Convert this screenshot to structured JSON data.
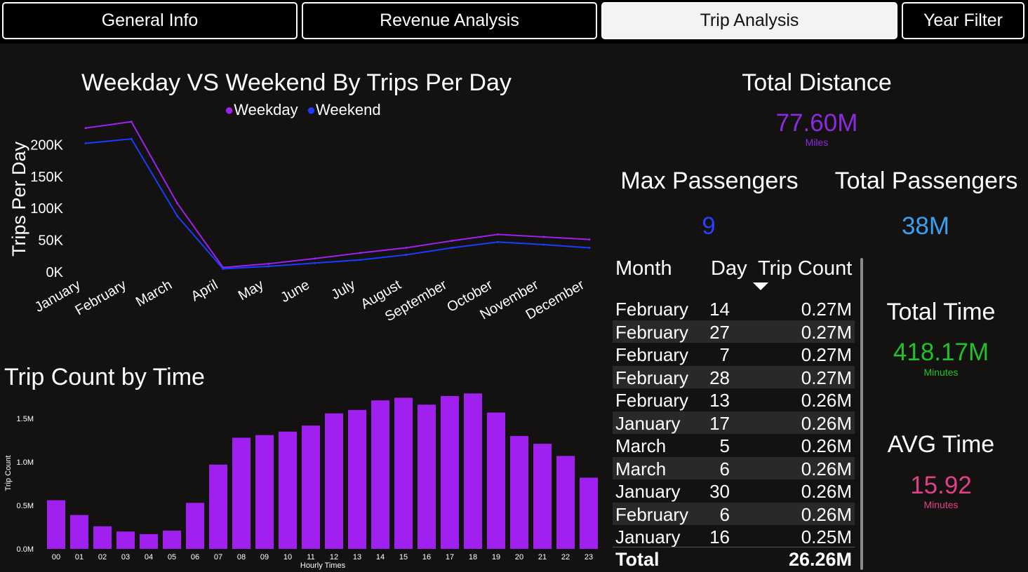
{
  "tabs": [
    {
      "label": "General Info"
    },
    {
      "label": "Revenue Analysis"
    },
    {
      "label": "Trip Analysis",
      "active": true
    },
    {
      "label": "Year Filter"
    }
  ],
  "colors": {
    "weekday": "#a020f0",
    "weekend": "#1a3cff",
    "bar": "#a020f0",
    "distance": "#8a2be2",
    "max_passengers": "#2540ff",
    "total_passengers": "#3aa0f0",
    "total_time": "#22c02a",
    "avg_time": "#e0408a"
  },
  "line_chart": {
    "title": "Weekday VS Weekend By Trips Per Day",
    "ylabel": "Trips Per Day",
    "legend": [
      {
        "name": "Weekday",
        "icon": "dot"
      },
      {
        "name": "Weekend",
        "icon": "dot"
      }
    ]
  },
  "bar_chart": {
    "title": "Trip Count by Time",
    "ylabel": "Trip Count",
    "xlabel": "Hourly Times"
  },
  "chart_data": [
    {
      "type": "line",
      "title": "Weekday VS Weekend By Trips Per Day",
      "ylabel": "Trips Per Day",
      "categories": [
        "January",
        "February",
        "March",
        "April",
        "May",
        "June",
        "July",
        "August",
        "September",
        "October",
        "November",
        "December"
      ],
      "y_ticks": [
        "0K",
        "50K",
        "100K",
        "150K",
        "200K"
      ],
      "ylim": [
        0,
        240000
      ],
      "legend_position": "top-center",
      "series": [
        {
          "name": "Weekday",
          "values": [
            226000,
            236000,
            108000,
            7000,
            13000,
            21000,
            30000,
            38000,
            49000,
            59000,
            55000,
            51000
          ]
        },
        {
          "name": "Weekend",
          "values": [
            202000,
            209000,
            88000,
            5000,
            9000,
            14000,
            19000,
            27000,
            38000,
            47000,
            43000,
            38000
          ]
        }
      ]
    },
    {
      "type": "bar",
      "title": "Trip Count by Time",
      "xlabel": "Hourly Times",
      "ylabel": "Trip Count",
      "categories": [
        "00",
        "01",
        "02",
        "03",
        "04",
        "05",
        "06",
        "07",
        "08",
        "09",
        "10",
        "11",
        "12",
        "13",
        "14",
        "15",
        "16",
        "17",
        "18",
        "19",
        "20",
        "21",
        "22",
        "23"
      ],
      "y_ticks": [
        "0.0M",
        "0.5M",
        "1.0M",
        "1.5M"
      ],
      "ylim": [
        0,
        1.8
      ],
      "values": [
        0.56,
        0.39,
        0.26,
        0.2,
        0.17,
        0.21,
        0.53,
        0.97,
        1.28,
        1.31,
        1.35,
        1.42,
        1.56,
        1.6,
        1.71,
        1.74,
        1.66,
        1.76,
        1.79,
        1.57,
        1.3,
        1.21,
        1.07,
        0.82
      ]
    }
  ],
  "kpis": {
    "total_distance": {
      "title": "Total Distance",
      "value": "77.60M",
      "unit": "Miles"
    },
    "max_passengers": {
      "title": "Max Passengers",
      "value": "9"
    },
    "total_passengers": {
      "title": "Total Passengers",
      "value": "38M"
    },
    "total_time": {
      "title": "Total Time",
      "value": "418.17M",
      "unit": "Minutes"
    },
    "avg_time": {
      "title": "AVG Time",
      "value": "15.92",
      "unit": "Minutes"
    }
  },
  "table": {
    "headers": [
      "Month",
      "Day",
      "Trip Count"
    ],
    "sort_indicator": "sort-descending-icon",
    "rows": [
      {
        "month": "February",
        "day": "14",
        "count": "0.27M"
      },
      {
        "month": "February",
        "day": "27",
        "count": "0.27M"
      },
      {
        "month": "February",
        "day": "7",
        "count": "0.27M"
      },
      {
        "month": "February",
        "day": "28",
        "count": "0.27M"
      },
      {
        "month": "February",
        "day": "13",
        "count": "0.26M"
      },
      {
        "month": "January",
        "day": "17",
        "count": "0.26M"
      },
      {
        "month": "March",
        "day": "5",
        "count": "0.26M"
      },
      {
        "month": "March",
        "day": "6",
        "count": "0.26M"
      },
      {
        "month": "January",
        "day": "30",
        "count": "0.26M"
      },
      {
        "month": "February",
        "day": "6",
        "count": "0.26M"
      },
      {
        "month": "January",
        "day": "16",
        "count": "0.25M"
      }
    ],
    "total": {
      "label": "Total",
      "value": "26.26M"
    }
  }
}
